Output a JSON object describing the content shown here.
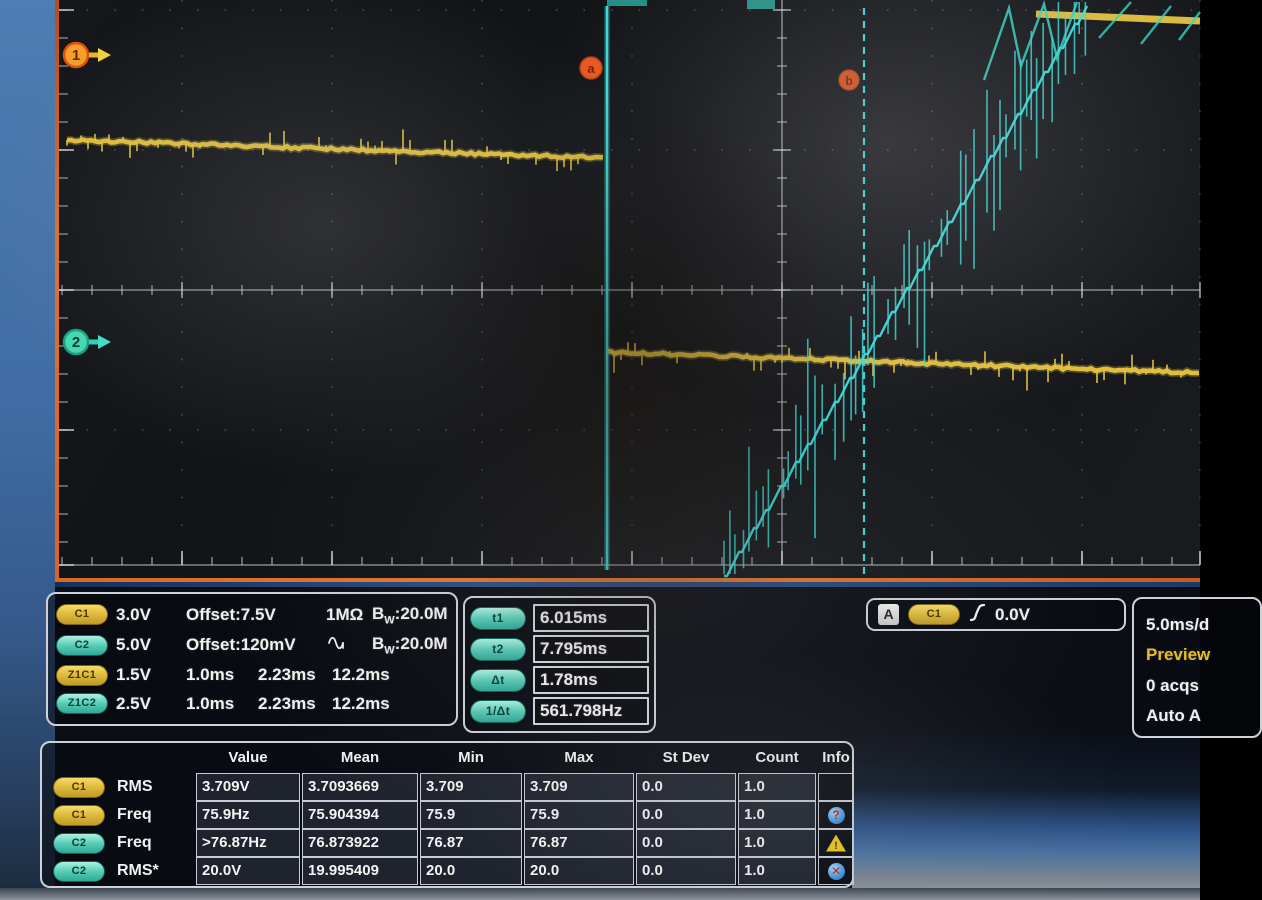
{
  "screen": {
    "channel1_label": "1",
    "channel2_label": "2",
    "cursor_a_label": "a",
    "cursor_b_label": "b"
  },
  "labels": {
    "bw_b": "B",
    "bw_w": "W"
  },
  "channel_info": {
    "rows": [
      {
        "badge": "C1",
        "scale": "3.0V",
        "offset": "Offset:7.5V",
        "impedance": "1MΩ",
        "bandwidth": ":20.0M"
      },
      {
        "badge": "C2",
        "scale": "5.0V",
        "offset": "Offset:120mV",
        "coupling": "ac",
        "bandwidth": ":20.0M"
      },
      {
        "badge": "Z1C1",
        "scale": "1.5V",
        "t1": "1.0ms",
        "t2": "2.23ms",
        "t3": "12.2ms"
      },
      {
        "badge": "Z1C2",
        "scale": "2.5V",
        "t1": "1.0ms",
        "t2": "2.23ms",
        "t3": "12.2ms"
      }
    ]
  },
  "cursors": {
    "rows": [
      {
        "label": "t1",
        "value": "6.015ms"
      },
      {
        "label": "t2",
        "value": "7.795ms"
      },
      {
        "label": "Δt",
        "value": "1.78ms"
      },
      {
        "label": "1/Δt",
        "value": "561.798Hz"
      }
    ]
  },
  "trigger": {
    "mode": "A",
    "source": "C1",
    "level": "0.0V"
  },
  "acquisition": {
    "timebase": "5.0ms/d",
    "status": "Preview",
    "count": "0 acqs",
    "mode": "Auto  A"
  },
  "measurements": {
    "headers": [
      "Value",
      "Mean",
      "Min",
      "Max",
      "St Dev",
      "Count",
      "Info"
    ],
    "rows": [
      {
        "channel": "C1",
        "name": "RMS",
        "value": "3.709V",
        "mean": "3.7093669",
        "min": "3.709",
        "max": "3.709",
        "stdev": "0.0",
        "count": "1.0",
        "info": ""
      },
      {
        "channel": "C1",
        "name": "Freq",
        "value": "75.9Hz",
        "mean": "75.904394",
        "min": "75.9",
        "max": "75.9",
        "stdev": "0.0",
        "count": "1.0",
        "info": "question"
      },
      {
        "channel": "C2",
        "name": "Freq",
        "value": ">76.87Hz",
        "mean": "76.873922",
        "min": "76.87",
        "max": "76.87",
        "stdev": "0.0",
        "count": "1.0",
        "info": "warning"
      },
      {
        "channel": "C2",
        "name": "RMS*",
        "value": "20.0V",
        "mean": "19.995409",
        "min": "20.0",
        "max": "20.0",
        "stdev": "0.0",
        "count": "1.0",
        "info": "error"
      }
    ]
  },
  "icons": {
    "question": "?",
    "warning": "!",
    "error": "✕"
  },
  "colors": {
    "ch1": "#e8c63e",
    "ch2": "#3ae4de",
    "accent_orange": "#e85a1e",
    "preview": "#e9bb1c"
  }
}
